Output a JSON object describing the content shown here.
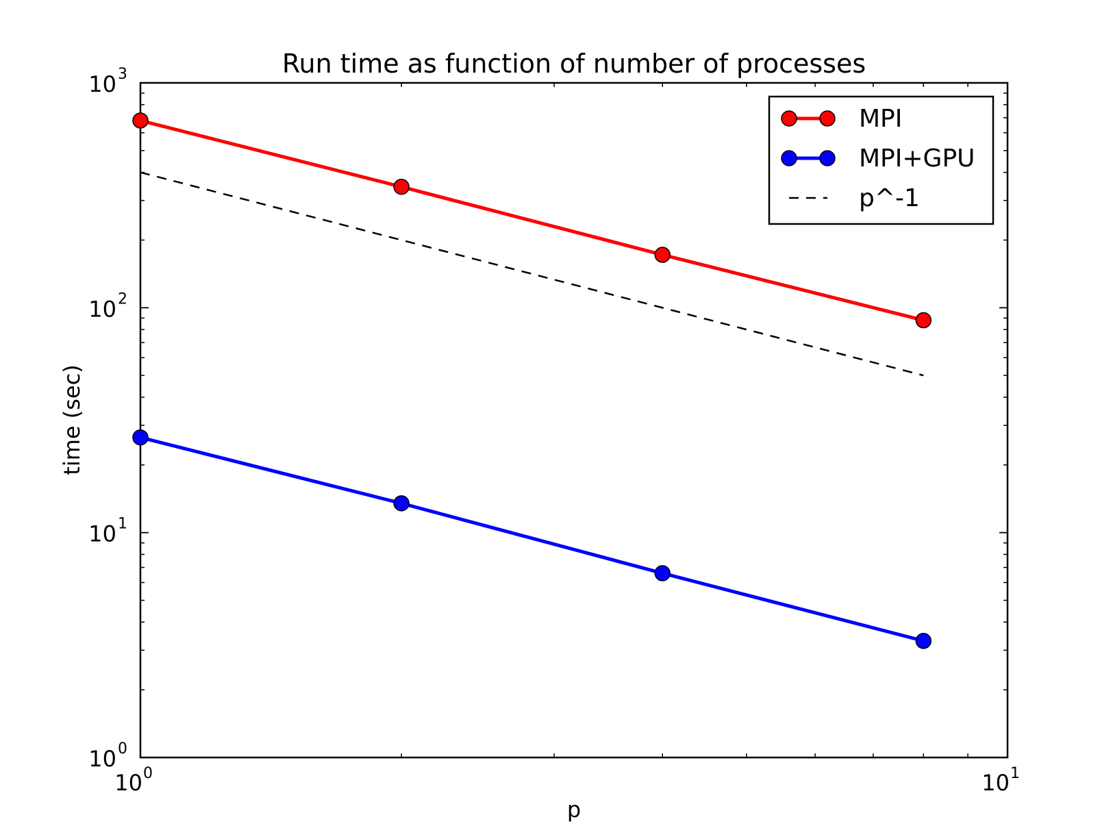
{
  "chart_data": {
    "type": "line",
    "title": "Run time as function of number of processes",
    "xlabel": "p",
    "ylabel": "time (sec)",
    "xscale": "log",
    "yscale": "log",
    "xlim": [
      1,
      10
    ],
    "ylim": [
      1,
      1000
    ],
    "grid": false,
    "legend_position": "top-right",
    "x_ticks": [
      {
        "base": "10",
        "exp": "0",
        "value": 1
      },
      {
        "base": "10",
        "exp": "1",
        "value": 10
      }
    ],
    "y_ticks": [
      {
        "base": "10",
        "exp": "0",
        "value": 1
      },
      {
        "base": "10",
        "exp": "1",
        "value": 10
      },
      {
        "base": "10",
        "exp": "2",
        "value": 100
      },
      {
        "base": "10",
        "exp": "3",
        "value": 1000
      }
    ],
    "series": [
      {
        "name": "MPI",
        "color": "#ff0000",
        "style": "solid-markers",
        "x": [
          1,
          2,
          4,
          8
        ],
        "y": [
          680,
          345,
          172,
          88
        ]
      },
      {
        "name": "MPI+GPU",
        "color": "#0000ff",
        "style": "solid-markers",
        "x": [
          1,
          2,
          4,
          8
        ],
        "y": [
          26.5,
          13.5,
          6.6,
          3.3
        ]
      },
      {
        "name": "p^-1",
        "color": "#000000",
        "style": "dashed",
        "x": [
          1,
          8
        ],
        "y": [
          400,
          50
        ]
      }
    ]
  }
}
